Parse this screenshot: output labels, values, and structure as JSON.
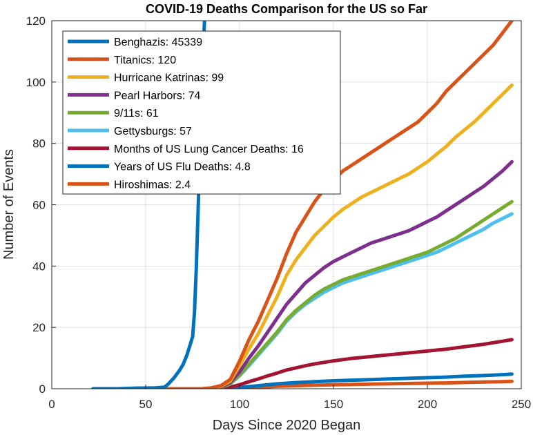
{
  "chart_data": {
    "type": "line",
    "title": "COVID-19 Deaths Comparison for the US so Far",
    "xlabel": "Days Since 2020 Began",
    "ylabel": "Number of Events",
    "xlim": [
      0,
      250
    ],
    "ylim": [
      0,
      120
    ],
    "xticks": [
      0,
      50,
      100,
      150,
      200,
      250
    ],
    "yticks": [
      0,
      20,
      40,
      60,
      80,
      100,
      120
    ],
    "grid": true,
    "legend_position": "top-left",
    "series": [
      {
        "name": "Benghazis: 45339",
        "color": "#0072BD",
        "x": [
          22,
          35,
          45,
          55,
          60,
          62,
          65,
          68,
          70,
          72,
          74,
          75,
          76,
          77,
          78,
          79,
          80,
          81,
          82
        ],
        "y": [
          0,
          0,
          0.2,
          0.3,
          0.5,
          1.5,
          3.5,
          6,
          8,
          11,
          15,
          17,
          25,
          40,
          60,
          80,
          100,
          115,
          130
        ]
      },
      {
        "name": "Titanics: 120",
        "color": "#D95319",
        "x": [
          22,
          80,
          85,
          90,
          95,
          100,
          105,
          110,
          115,
          120,
          125,
          130,
          135,
          140,
          145,
          150,
          155,
          160,
          165,
          170,
          175,
          180,
          185,
          190,
          195,
          200,
          205,
          210,
          215,
          220,
          225,
          230,
          235,
          240,
          245
        ],
        "y": [
          0,
          0,
          0.3,
          1,
          3,
          9,
          16,
          22,
          29,
          36,
          44,
          51,
          56,
          61,
          65,
          68,
          71,
          73,
          75,
          77,
          79,
          81,
          83,
          85,
          87,
          90,
          93,
          97,
          100,
          103,
          106,
          109,
          112,
          116,
          120
        ]
      },
      {
        "name": "Hurricane Katrinas: 99",
        "color": "#EDB120",
        "x": [
          22,
          80,
          85,
          90,
          95,
          100,
          105,
          110,
          115,
          120,
          125,
          130,
          135,
          140,
          145,
          150,
          155,
          160,
          165,
          170,
          175,
          180,
          185,
          190,
          195,
          200,
          205,
          210,
          215,
          220,
          225,
          230,
          235,
          240,
          245
        ],
        "y": [
          0,
          0,
          0.2,
          0.8,
          2.5,
          7.5,
          13,
          18,
          24,
          30,
          37,
          42,
          46,
          50,
          53,
          56,
          58.5,
          60.5,
          62.5,
          64,
          65.5,
          67,
          68.5,
          70,
          72,
          74,
          76.5,
          79,
          82,
          84.5,
          87,
          90,
          93,
          96,
          99
        ]
      },
      {
        "name": "Pearl Harbors: 74",
        "color": "#7E2F8E",
        "x": [
          22,
          80,
          85,
          90,
          95,
          100,
          105,
          110,
          115,
          120,
          125,
          130,
          135,
          140,
          145,
          150,
          155,
          160,
          165,
          170,
          175,
          180,
          185,
          190,
          195,
          200,
          205,
          210,
          215,
          220,
          225,
          230,
          235,
          240,
          245
        ],
        "y": [
          0,
          0,
          0.2,
          0.6,
          2,
          5.5,
          10,
          14,
          18.5,
          23,
          27.5,
          31,
          34.5,
          37,
          39.5,
          41.5,
          43,
          44.5,
          46,
          47.5,
          48.5,
          49.5,
          50.5,
          51.5,
          53,
          54.5,
          56,
          58,
          60,
          62,
          64,
          66,
          68.5,
          71,
          74
        ]
      },
      {
        "name": "9/11s: 61",
        "color": "#77AC30",
        "x": [
          22,
          80,
          85,
          90,
          95,
          100,
          105,
          110,
          115,
          120,
          125,
          130,
          135,
          140,
          145,
          150,
          155,
          160,
          165,
          170,
          175,
          180,
          185,
          190,
          195,
          200,
          205,
          210,
          215,
          220,
          225,
          230,
          235,
          240,
          245
        ],
        "y": [
          0,
          0,
          0.15,
          0.5,
          1.6,
          4.5,
          8,
          11.5,
          15,
          18.5,
          22.5,
          25.5,
          28,
          30.5,
          32.5,
          34,
          35.5,
          36.5,
          37.5,
          38.5,
          39.5,
          40.5,
          41.5,
          42.5,
          43.5,
          44.5,
          46,
          47.5,
          49,
          51,
          53,
          55,
          57,
          59,
          61
        ]
      },
      {
        "name": "Gettysburgs: 57",
        "color": "#4DBEEE",
        "x": [
          22,
          80,
          85,
          90,
          95,
          100,
          105,
          110,
          115,
          120,
          125,
          130,
          135,
          140,
          145,
          150,
          155,
          160,
          165,
          170,
          175,
          180,
          185,
          190,
          195,
          200,
          205,
          210,
          215,
          220,
          225,
          230,
          235,
          240,
          245
        ],
        "y": [
          0,
          0,
          0.15,
          0.5,
          1.5,
          4.2,
          7.5,
          11,
          14.5,
          18,
          22,
          25,
          27.5,
          29.5,
          31.5,
          33,
          34.5,
          35.5,
          36.5,
          37.5,
          38.5,
          39.5,
          40.5,
          41.5,
          42.5,
          43.5,
          44.5,
          46,
          47.5,
          49,
          50.5,
          52,
          54,
          55.5,
          57
        ]
      },
      {
        "name": "Months of US Lung Cancer Deaths: 16",
        "color": "#A2142F",
        "x": [
          22,
          80,
          85,
          90,
          95,
          100,
          105,
          110,
          115,
          120,
          125,
          130,
          135,
          140,
          145,
          150,
          155,
          160,
          165,
          170,
          175,
          180,
          185,
          190,
          195,
          200,
          205,
          210,
          215,
          220,
          225,
          230,
          235,
          240,
          245
        ],
        "y": [
          0,
          0,
          0.05,
          0.15,
          0.5,
          1.3,
          2.3,
          3.2,
          4.2,
          5.1,
          6.1,
          6.8,
          7.5,
          8.1,
          8.6,
          9.1,
          9.5,
          9.9,
          10.2,
          10.5,
          10.8,
          11.1,
          11.4,
          11.7,
          12,
          12.3,
          12.6,
          12.9,
          13.3,
          13.7,
          14.1,
          14.5,
          15,
          15.5,
          16
        ]
      },
      {
        "name": "Years of US Flu Deaths: 4.8",
        "color": "#0072BD",
        "x": [
          22,
          80,
          90,
          100,
          110,
          120,
          130,
          140,
          150,
          160,
          170,
          180,
          190,
          200,
          210,
          220,
          230,
          240,
          245
        ],
        "y": [
          0,
          0,
          0.1,
          0.4,
          1,
          1.6,
          2,
          2.3,
          2.6,
          2.8,
          3,
          3.2,
          3.4,
          3.6,
          3.8,
          4.1,
          4.3,
          4.6,
          4.8
        ]
      },
      {
        "name": "Hiroshimas: 2.4",
        "color": "#D95319",
        "x": [
          22,
          80,
          90,
          100,
          110,
          120,
          130,
          140,
          150,
          160,
          170,
          180,
          190,
          200,
          210,
          220,
          230,
          240,
          245
        ],
        "y": [
          0,
          0,
          0.05,
          0.2,
          0.5,
          0.8,
          1,
          1.15,
          1.3,
          1.4,
          1.5,
          1.6,
          1.7,
          1.8,
          1.9,
          2.05,
          2.2,
          2.3,
          2.4
        ]
      }
    ]
  }
}
